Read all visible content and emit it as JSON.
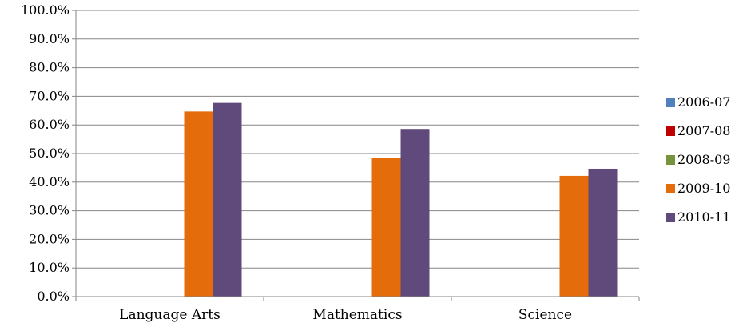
{
  "chart_data": {
    "type": "bar",
    "categories": [
      "Language Arts",
      "Mathematics",
      "Science"
    ],
    "series": [
      {
        "name": "2006-07",
        "color": "#4f81bd",
        "values": [
          0,
          0,
          0
        ]
      },
      {
        "name": "2007-08",
        "color": "#c00000",
        "values": [
          0,
          0,
          0
        ]
      },
      {
        "name": "2008-09",
        "color": "#77933c",
        "values": [
          0,
          0,
          0
        ]
      },
      {
        "name": "2009-10",
        "color": "#e46c0a",
        "values": [
          64.7,
          48.6,
          42.2
        ]
      },
      {
        "name": "2010-11",
        "color": "#604a7b",
        "values": [
          67.7,
          58.6,
          44.7
        ]
      }
    ],
    "ylim": [
      0,
      100
    ],
    "yticks": [
      "0.0%",
      "10.0%",
      "20.0%",
      "30.0%",
      "40.0%",
      "50.0%",
      "60.0%",
      "70.0%",
      "80.0%",
      "90.0%",
      "100.0%"
    ],
    "grid": true,
    "legend": "right",
    "xlabel": "",
    "ylabel": "",
    "title": ""
  }
}
